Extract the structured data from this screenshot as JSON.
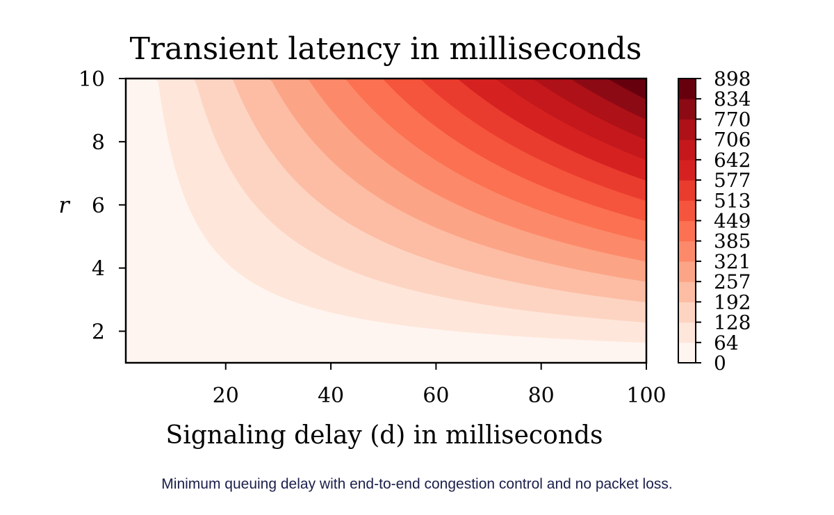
{
  "chart_data": {
    "type": "contour",
    "title": "Transient latency in milliseconds",
    "xlabel": "Signaling delay (d) in milliseconds",
    "ylabel": "r",
    "xlim": [
      1,
      100
    ],
    "ylim": [
      1,
      10
    ],
    "x_ticks": [
      20,
      40,
      60,
      80,
      100
    ],
    "y_ticks": [
      2,
      4,
      6,
      8,
      10
    ],
    "model": "latency = d * (r - 1)",
    "colorbar": {
      "levels": [
        0,
        64,
        128,
        192,
        257,
        321,
        385,
        449,
        513,
        577,
        642,
        706,
        770,
        834,
        898
      ],
      "tick_labels": [
        "0",
        "64",
        "128",
        "192",
        "257",
        "321",
        "385",
        "449",
        "513",
        "577",
        "642",
        "706",
        "770",
        "834",
        "898"
      ],
      "colors": [
        "#fff5f0",
        "#fee6da",
        "#fdd4c2",
        "#fcbda4",
        "#fca486",
        "#fc8a6a",
        "#fb7151",
        "#f5553c",
        "#ea3c2e",
        "#d52221",
        "#c4181c",
        "#ae1117",
        "#8c0a14",
        "#67000d"
      ]
    }
  },
  "caption": "Minimum queuing delay with end-to-end congestion control and no packet loss."
}
